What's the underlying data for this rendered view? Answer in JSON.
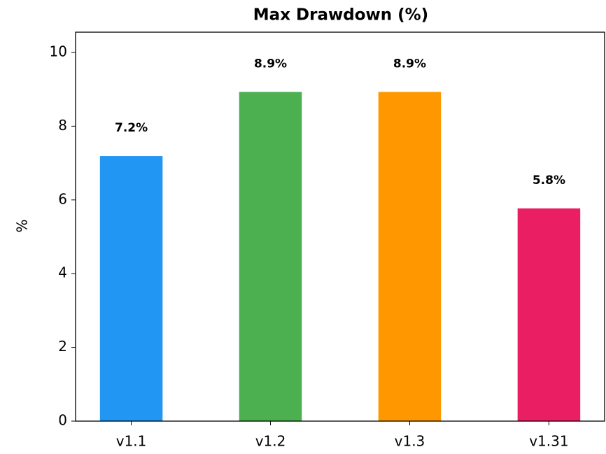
{
  "chart_data": {
    "type": "bar",
    "title": "Max Drawdown (%)",
    "y_label": "%",
    "categories": [
      "v1.1",
      "v1.2",
      "v1.3",
      "v1.31"
    ],
    "values": [
      7.19,
      8.93,
      8.93,
      5.77
    ],
    "value_labels": [
      "7.2%",
      "8.9%",
      "8.9%",
      "5.8%"
    ],
    "colors": [
      "#2196f3",
      "#4caf50",
      "#ff9800",
      "#e91e63"
    ],
    "ylim": [
      0,
      10.55
    ],
    "yticks": [
      0,
      2,
      4,
      6,
      8,
      10
    ],
    "grid": false
  }
}
